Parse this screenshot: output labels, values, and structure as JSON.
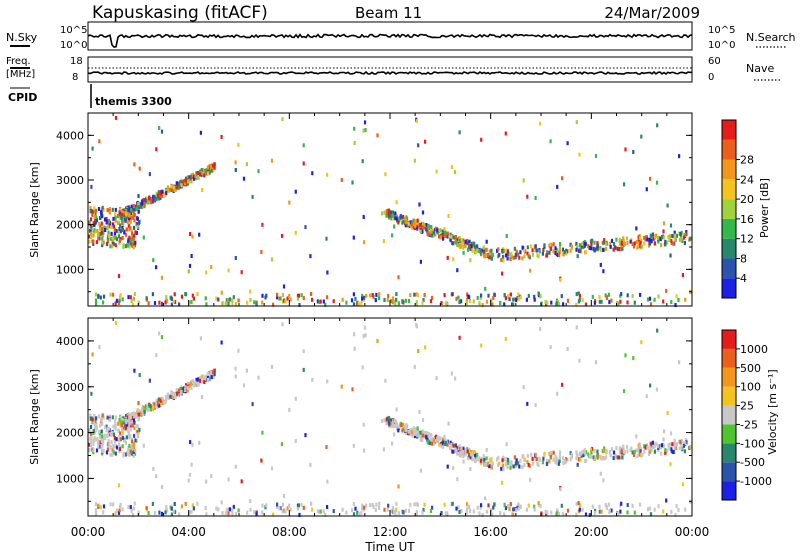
{
  "header": {
    "station": "Kapuskasing (fitACF)",
    "beam": "Beam 11",
    "date": "24/Mar/2009"
  },
  "noise_panel": {
    "left_label": "N.Sky",
    "right_label": "N.Search",
    "yticks": [
      "10^5",
      "10^0"
    ]
  },
  "freq_panel": {
    "left_label_1": "Freq.",
    "left_label_2": "[MHz]",
    "right_label": "Nave",
    "left_ticks": [
      "18",
      "8"
    ],
    "right_ticks": [
      "60",
      "0"
    ]
  },
  "cpid": {
    "label": "CPID",
    "program": "themis 3300"
  },
  "chart_data": [
    {
      "type": "heatmap",
      "panel": "power",
      "xlabel": "Time UT",
      "ylabel": "Slant Range [km]",
      "xticks": [
        "00:00",
        "04:00",
        "08:00",
        "12:00",
        "16:00",
        "20:00",
        "00:00"
      ],
      "xlim_hours": [
        0,
        24
      ],
      "ylim": [
        180,
        4500
      ],
      "yticks": [
        1000,
        2000,
        3000,
        4000
      ],
      "colorbar": {
        "label": "Power [dB]",
        "ticks": [
          "4",
          "8",
          "12",
          "16",
          "20",
          "24",
          "28"
        ],
        "colors": [
          "#1c20e4",
          "#2a54ac",
          "#28876c",
          "#35b84a",
          "#a0d33a",
          "#f3c41d",
          "#f1981b",
          "#ec5e1b",
          "#e41c1c"
        ]
      },
      "features": [
        {
          "name": "near-range ground scatter",
          "t": [
            0.2,
            23.8
          ],
          "range": [
            180,
            450
          ]
        },
        {
          "name": "echo band 00-02 UT",
          "t": [
            0,
            2
          ],
          "range": [
            1500,
            2400
          ]
        },
        {
          "name": "rising arc 01-05 UT",
          "t": [
            1.2,
            5
          ],
          "range": [
            2200,
            3300
          ]
        },
        {
          "name": "echo band 12-16 UT",
          "t": [
            11.8,
            16
          ],
          "range": [
            1400,
            2300
          ]
        },
        {
          "name": "echo band 16-24 UT",
          "t": [
            16,
            24
          ],
          "range": [
            1250,
            1900
          ]
        }
      ]
    },
    {
      "type": "heatmap",
      "panel": "velocity",
      "xlabel": "Time UT",
      "ylabel": "Slant Range [km]",
      "xticks": [
        "00:00",
        "04:00",
        "08:00",
        "12:00",
        "16:00",
        "20:00",
        "00:00"
      ],
      "xlim_hours": [
        0,
        24
      ],
      "ylim": [
        180,
        4500
      ],
      "yticks": [
        1000,
        2000,
        3000,
        4000
      ],
      "colorbar": {
        "label": "Velocity [m s⁻¹]",
        "ticks": [
          "1000",
          "500",
          "100",
          "25",
          "-25",
          "-100",
          "-500",
          "-1000"
        ],
        "colors": [
          "#1c20e4",
          "#2a54ac",
          "#28876c",
          "#4fc42e",
          "#c8c8c8",
          "#f3c41d",
          "#f1981b",
          "#ec5e1b",
          "#e41c1c"
        ]
      }
    }
  ]
}
